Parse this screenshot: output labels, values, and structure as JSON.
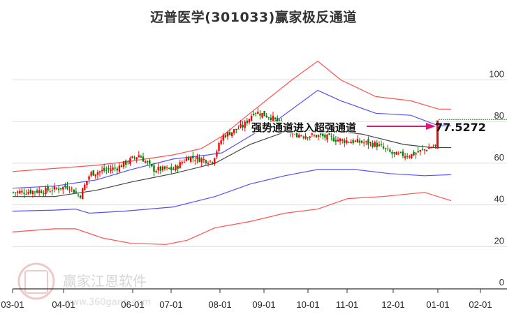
{
  "title": "迈普医学(301033)赢家极反通道",
  "watermark": {
    "brand": "赢家江恩软件",
    "url": "www.360gann.com",
    "logo_chars": [
      "江",
      "赢",
      "恩",
      "家"
    ]
  },
  "colors": {
    "up": "#ff0000",
    "down": "#008000",
    "outer_band": "#ff3333",
    "inner_band": "#3333ff",
    "mid_line": "#222222",
    "arrow": "#e0167a",
    "grid": "#dddddd",
    "last_price_line": "#009900"
  },
  "annotation": {
    "text": "强势通道进入超强通道",
    "value_label": "77.5272"
  },
  "chart_data": {
    "type": "candlestick",
    "title": "迈普医学(301033)赢家极反通道",
    "xlabel": "",
    "ylabel": "",
    "ylim": [
      0,
      110
    ],
    "yticks": [
      0,
      20,
      40,
      60,
      80,
      100
    ],
    "xticks": [
      "03-01",
      "04-01",
      "06-01",
      "07-01",
      "08-01",
      "09-01",
      "10-01",
      "11-01",
      "12-01",
      "01-01",
      "02-01"
    ],
    "grid": true,
    "annotations": [
      {
        "text": "强势通道进入超强通道",
        "arrow_to": "77.5272"
      },
      {
        "text": "77.5272",
        "value": 77.5272
      }
    ],
    "series": [
      {
        "name": "upper_outer_band",
        "color": "#ff3333",
        "values": [
          [
            0,
            56
          ],
          [
            60,
            57.5
          ],
          [
            120,
            59
          ],
          [
            170,
            61
          ],
          [
            230,
            64
          ],
          [
            270,
            67
          ],
          [
            300,
            73
          ],
          [
            340,
            84
          ],
          [
            370,
            92
          ],
          [
            400,
            100
          ],
          [
            437,
            109
          ],
          [
            470,
            100
          ],
          [
            520,
            92
          ],
          [
            570,
            90
          ],
          [
            610,
            86
          ],
          [
            628,
            86
          ]
        ]
      },
      {
        "name": "upper_inner_band",
        "color": "#3333ff",
        "values": [
          [
            0,
            48
          ],
          [
            60,
            49
          ],
          [
            120,
            52
          ],
          [
            170,
            57
          ],
          [
            230,
            62
          ],
          [
            280,
            64
          ],
          [
            300,
            65
          ],
          [
            340,
            73
          ],
          [
            380,
            81
          ],
          [
            437,
            95
          ],
          [
            470,
            90
          ],
          [
            520,
            84
          ],
          [
            570,
            83
          ],
          [
            610,
            78
          ],
          [
            628,
            78
          ]
        ]
      },
      {
        "name": "middle_line",
        "color": "#222222",
        "values": [
          [
            0,
            44
          ],
          [
            60,
            44
          ],
          [
            120,
            47
          ],
          [
            170,
            51
          ],
          [
            230,
            55
          ],
          [
            290,
            60
          ],
          [
            340,
            69
          ],
          [
            390,
            75
          ],
          [
            430,
            76
          ],
          [
            500,
            74
          ],
          [
            560,
            69
          ],
          [
            600,
            67.5
          ],
          [
            628,
            67.5
          ]
        ]
      },
      {
        "name": "lower_inner_band",
        "color": "#3333ff",
        "values": [
          [
            0,
            37
          ],
          [
            60,
            37.5
          ],
          [
            90,
            38
          ],
          [
            110,
            36
          ],
          [
            160,
            37
          ],
          [
            230,
            39
          ],
          [
            290,
            44
          ],
          [
            340,
            50
          ],
          [
            390,
            54
          ],
          [
            437,
            57
          ],
          [
            490,
            57
          ],
          [
            540,
            55
          ],
          [
            590,
            54
          ],
          [
            628,
            54.5
          ]
        ]
      },
      {
        "name": "lower_outer_band",
        "color": "#ff3333",
        "values": [
          [
            0,
            27
          ],
          [
            60,
            28.5
          ],
          [
            90,
            28.5
          ],
          [
            130,
            24
          ],
          [
            170,
            21.5
          ],
          [
            220,
            21
          ],
          [
            250,
            23
          ],
          [
            290,
            29
          ],
          [
            340,
            32
          ],
          [
            390,
            36
          ],
          [
            437,
            38
          ],
          [
            480,
            43
          ],
          [
            530,
            44
          ],
          [
            590,
            46
          ],
          [
            628,
            42
          ]
        ]
      },
      {
        "name": "close_approx",
        "values": [
          [
            0,
            46
          ],
          [
            50,
            47
          ],
          [
            80,
            49
          ],
          [
            95,
            44
          ],
          [
            110,
            55
          ],
          [
            150,
            58
          ],
          [
            180,
            64
          ],
          [
            200,
            57
          ],
          [
            230,
            57
          ],
          [
            250,
            63
          ],
          [
            285,
            61
          ],
          [
            300,
            73
          ],
          [
            330,
            78
          ],
          [
            345,
            85
          ],
          [
            370,
            82
          ],
          [
            400,
            74
          ],
          [
            440,
            73
          ],
          [
            470,
            71
          ],
          [
            500,
            70
          ],
          [
            520,
            69
          ],
          [
            545,
            64
          ],
          [
            570,
            64
          ],
          [
            600,
            68
          ],
          [
            625,
            68
          ],
          [
            628,
            77.5
          ]
        ]
      }
    ],
    "last_value": 77.5272
  }
}
